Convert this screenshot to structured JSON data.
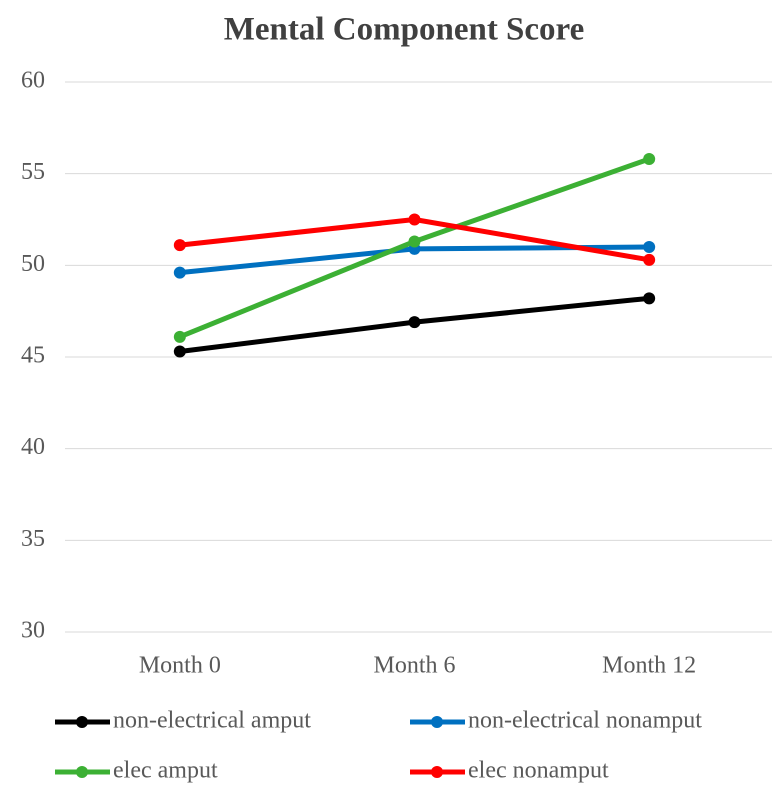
{
  "chart_data": {
    "type": "line",
    "title": "Mental Component Score",
    "categories": [
      "Month 0",
      "Month 6",
      "Month 12"
    ],
    "series": [
      {
        "name": "non-electrical amput",
        "color": "#000000",
        "values": [
          45.3,
          46.9,
          48.2
        ]
      },
      {
        "name": "non-electrical nonamput",
        "color": "#0070c0",
        "values": [
          49.6,
          50.9,
          51.0
        ]
      },
      {
        "name": "elec amput",
        "color": "#3cb034",
        "values": [
          46.1,
          51.3,
          55.8
        ]
      },
      {
        "name": "elec nonamput",
        "color": "#ff0000",
        "values": [
          51.1,
          52.5,
          50.3
        ]
      }
    ],
    "ylim": [
      30,
      60
    ],
    "yticks": [
      30,
      35,
      40,
      45,
      50,
      55,
      60
    ],
    "grid": true,
    "legend": "bottom"
  }
}
